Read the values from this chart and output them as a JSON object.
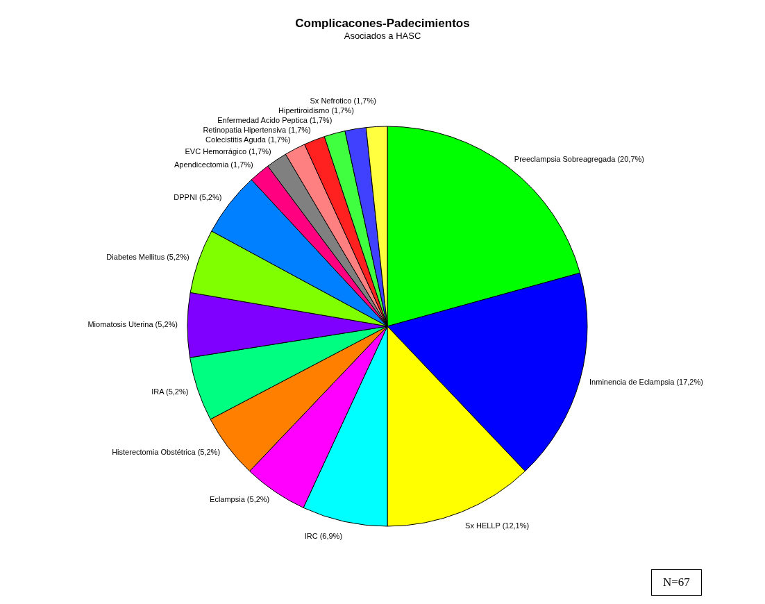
{
  "chart_data": {
    "type": "pie",
    "title": "Complicacones-Padecimientos",
    "subtitle": "Asociados a HASC",
    "categories": [
      "Preeclampsia Sobreagregada (20,7%)",
      "Inminencia de Eclampsia (17,2%)",
      "Sx HELLP (12,1%)",
      "IRC (6,9%)",
      "Eclampsia (5,2%)",
      "Histerectomia Obstétrica (5,2%)",
      "IRA (5,2%)",
      "Miomatosis Uterina (5,2%)",
      "Diabetes Mellitus (5,2%)",
      "DPPNI (5,2%)",
      "Apendicectomia (1,7%)",
      "EVC Hemorrágico (1,7%)",
      "Colecistitis Aguda (1,7%)",
      "Retinopatia Hipertensiva (1,7%)",
      "Enfermedad Acido Peptica (1,7%)",
      "Hipertiroidismo (1,7%)",
      "Sx Nefrotico (1,7%)"
    ],
    "values": [
      20.7,
      17.2,
      12.1,
      6.9,
      5.2,
      5.2,
      5.2,
      5.2,
      5.2,
      5.2,
      1.7,
      1.7,
      1.7,
      1.7,
      1.7,
      1.7,
      1.7
    ],
    "colors": [
      "#00ff00",
      "#0000ff",
      "#ffff00",
      "#00ffff",
      "#ff00ff",
      "#ff8000",
      "#00ff80",
      "#8000ff",
      "#80ff00",
      "#0080ff",
      "#ff0080",
      "#808080",
      "#ff8080",
      "#ff2020",
      "#40ff40",
      "#4040ff",
      "#ffff40"
    ],
    "annotations": [
      "N=67"
    ],
    "legend": false
  }
}
